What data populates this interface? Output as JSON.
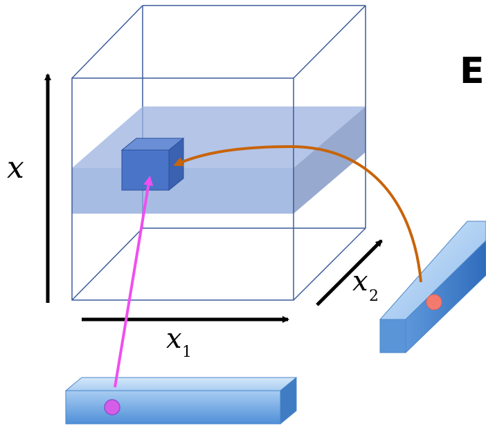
{
  "labels": {
    "vertical_axis": "x",
    "horizontal_axis": "x",
    "horizontal_axis_subscript": "1",
    "depth_axis": "x",
    "depth_axis_subscript": "2",
    "heading_fragment": "E"
  },
  "colors": {
    "cube_edge": "#3a5a9a",
    "slab_fill": "#7f9bd6",
    "small_cube_fill": "#4a74c8",
    "bar_fill": "#6fa3dd",
    "magenta_arrow": "#f04ef0",
    "orange_arrow": "#c8640a",
    "magenta_dot": "#d65de8",
    "salmon_dot": "#f47a6e"
  }
}
